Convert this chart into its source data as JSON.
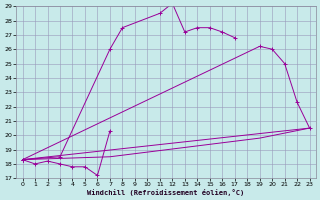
{
  "xlabel": "Windchill (Refroidissement éolien,°C)",
  "bg_color": "#c8eaea",
  "grid_color": "#9999bb",
  "line_color": "#990099",
  "ylim": [
    17,
    29
  ],
  "xlim": [
    -0.5,
    23.5
  ],
  "series1_x": [
    0,
    1,
    2,
    3,
    4,
    5,
    6,
    7
  ],
  "series1_y": [
    18.3,
    18.0,
    18.2,
    18.0,
    17.8,
    17.8,
    17.2,
    20.3
  ],
  "series2_x": [
    0,
    3,
    7,
    8,
    11,
    12,
    13,
    14,
    15,
    16,
    17
  ],
  "series2_y": [
    18.3,
    18.5,
    26.0,
    27.5,
    28.5,
    29.2,
    27.2,
    27.5,
    27.5,
    27.2,
    26.8
  ],
  "series3_x": [
    0,
    23
  ],
  "series3_y": [
    18.3,
    20.5
  ],
  "series4_x": [
    0,
    19,
    20,
    21,
    22,
    23
  ],
  "series4_y": [
    18.3,
    26.2,
    26.0,
    25.0,
    22.3,
    20.5
  ],
  "series5_x": [
    0,
    7,
    19,
    23
  ],
  "series5_y": [
    18.3,
    18.5,
    19.8,
    20.5
  ]
}
